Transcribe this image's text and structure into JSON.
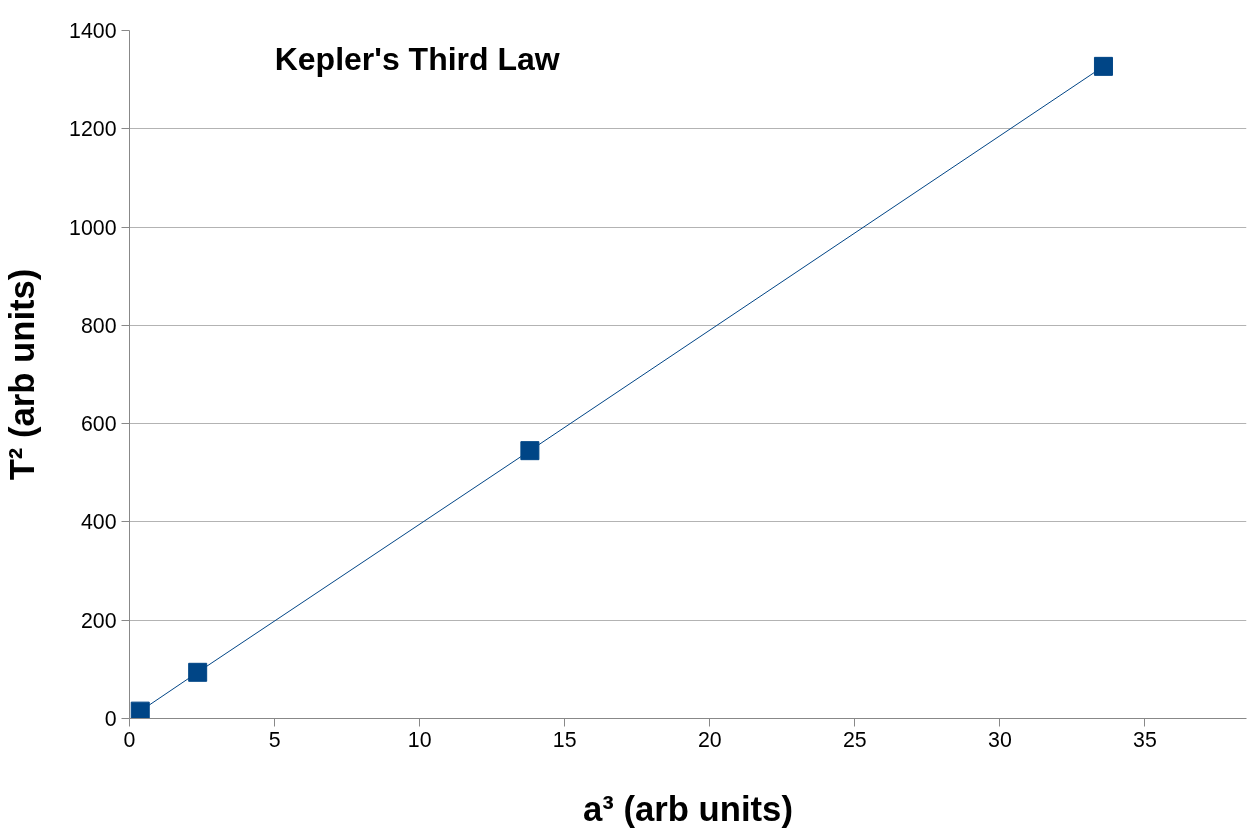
{
  "chart_data": {
    "type": "line",
    "title": "Kepler's Third Law",
    "xlabel": "a³ (arb units)",
    "ylabel": "T² (arb units)",
    "x": [
      0.37,
      2.35,
      13.8,
      33.57
    ],
    "series": [
      {
        "color": "#004586",
        "values": [
          15,
          94,
          545,
          1327
        ]
      }
    ],
    "marker": "square",
    "line_style": "solid",
    "xlim": [
      0,
      38.5
    ],
    "xticks": [
      0,
      5,
      10,
      15,
      20,
      25,
      30,
      35
    ],
    "ylim": [
      0,
      1400
    ],
    "yticks": [
      0,
      200,
      400,
      600,
      800,
      1000,
      1200,
      1400
    ],
    "grid": "y"
  }
}
